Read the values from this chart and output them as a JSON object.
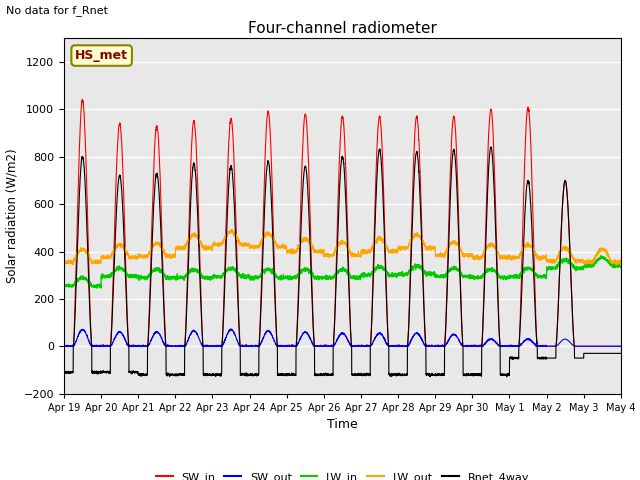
{
  "title": "Four-channel radiometer",
  "subtitle": "No data for f_Rnet",
  "ylabel": "Solar radiation (W/m2)",
  "xlabel": "Time",
  "ylim": [
    -200,
    1300
  ],
  "yticks": [
    -200,
    0,
    200,
    400,
    600,
    800,
    1000,
    1200
  ],
  "xtick_labels": [
    "Apr 19",
    "Apr 20",
    "Apr 21",
    "Apr 22",
    "Apr 23",
    "Apr 24",
    "Apr 25",
    "Apr 26",
    "Apr 27",
    "Apr 28",
    "Apr 29",
    "Apr 30",
    "May 1",
    "May 2",
    "May 3",
    "May 4"
  ],
  "colors": {
    "SW_in": "#ff0000",
    "SW_out": "#0000ff",
    "LW_in": "#00cc00",
    "LW_out": "#ffa500",
    "Rnet_4way": "#000000"
  },
  "legend_label": "HS_met",
  "legend_box_facecolor": "#ffffcc",
  "legend_box_edgecolor": "#8b8000",
  "plot_bg_color": "#e8e8e8",
  "fig_bg_color": "#ffffff",
  "grid_color": "#ffffff",
  "n_days": 15,
  "points_per_day": 288,
  "SW_peaks": [
    1040,
    940,
    930,
    950,
    960,
    990,
    980,
    970,
    970,
    970,
    970,
    1000,
    1010,
    700,
    0
  ],
  "Rnet_peaks": [
    800,
    720,
    730,
    770,
    760,
    780,
    760,
    800,
    830,
    820,
    830,
    840,
    700,
    0,
    0
  ],
  "LW_in_base": [
    255,
    295,
    290,
    290,
    295,
    290,
    290,
    290,
    300,
    305,
    295,
    290,
    295,
    330,
    340
  ],
  "LW_out_base": [
    355,
    375,
    380,
    415,
    430,
    420,
    400,
    385,
    400,
    415,
    385,
    375,
    375,
    360,
    355
  ],
  "SW_out_peak": [
    70,
    60,
    60,
    65,
    70,
    65,
    60,
    55,
    55,
    55,
    50,
    30,
    30,
    0,
    0
  ],
  "Rnet_trough": [
    -110,
    -110,
    -120,
    -120,
    -120,
    -120,
    -120,
    -120,
    -120,
    -120,
    -120,
    -120,
    -50,
    -50,
    0
  ]
}
